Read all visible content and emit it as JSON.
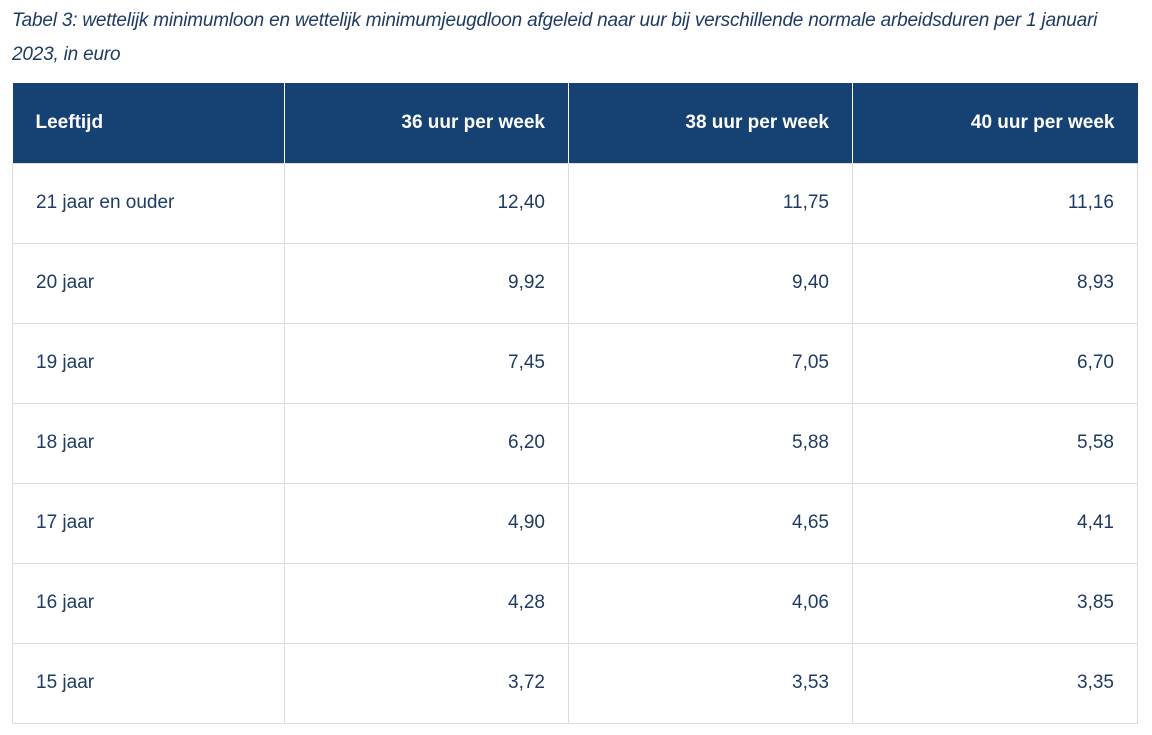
{
  "caption": "Tabel 3: wettelijk minimumloon en wettelijk minimumjeugdloon afgeleid naar uur bij verschillende normale arbeidsduren per 1 januari 2023, in euro",
  "table": {
    "headers": [
      "Leeftijd",
      "36 uur per week",
      "38 uur per week",
      "40 uur per week"
    ],
    "rows": [
      [
        "21 jaar en ouder",
        "12,40",
        "11,75",
        "11,16"
      ],
      [
        "20 jaar",
        "9,92",
        "9,40",
        "8,93"
      ],
      [
        "19 jaar",
        "7,45",
        "7,05",
        "6,70"
      ],
      [
        "18 jaar",
        "6,20",
        "5,88",
        "5,58"
      ],
      [
        "17 jaar",
        "4,90",
        "4,65",
        "4,41"
      ],
      [
        "16 jaar",
        "4,28",
        "4,06",
        "3,85"
      ],
      [
        "15 jaar",
        "3,72",
        "3,53",
        "3,35"
      ]
    ]
  },
  "colors": {
    "header_bg": "#154273",
    "header_text": "#ffffff",
    "body_text": "#1f3b63",
    "grid": "#dcdcdc"
  }
}
